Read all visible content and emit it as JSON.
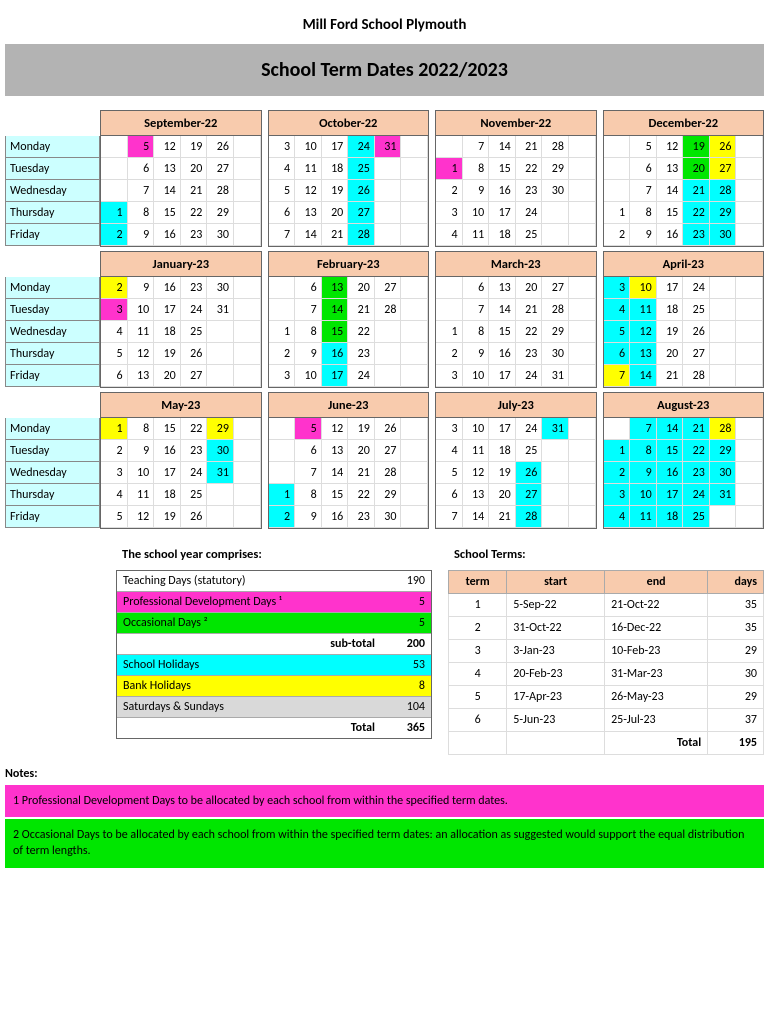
{
  "school_name": "Mill Ford School Plymouth",
  "banner": "School Term Dates 2022/2023",
  "day_names": [
    "Monday",
    "Tuesday",
    "Wednesday",
    "Thursday",
    "Friday"
  ],
  "colors": {
    "pink": "#ff33cc",
    "cyan": "#00ffff",
    "green": "#00e600",
    "yellow": "#ffff00",
    "header_peach": "#f8cbad",
    "day_label_bg": "#ccffff",
    "banner_grey": "#b3b3b3",
    "grey": "#d9d9d9"
  },
  "rows": [
    [
      {
        "name": "September-22",
        "cols": [
          [
            "",
            "5:pink",
            "12",
            "19",
            "26",
            ""
          ],
          [
            "",
            "6",
            "13",
            "20",
            "27",
            ""
          ],
          [
            "",
            "7",
            "14",
            "21",
            "28",
            ""
          ],
          [
            "1:cyan",
            "8",
            "15",
            "22",
            "29",
            ""
          ],
          [
            "2:cyan",
            "9",
            "16",
            "23",
            "30",
            ""
          ]
        ]
      },
      {
        "name": "October-22",
        "cols": [
          [
            "3",
            "10",
            "17",
            "24:cyan",
            "31:pink",
            ""
          ],
          [
            "4",
            "11",
            "18",
            "25:cyan",
            "",
            ""
          ],
          [
            "5",
            "12",
            "19",
            "26:cyan",
            "",
            ""
          ],
          [
            "6",
            "13",
            "20",
            "27:cyan",
            "",
            ""
          ],
          [
            "7",
            "14",
            "21",
            "28:cyan",
            "",
            ""
          ]
        ]
      },
      {
        "name": "November-22",
        "cols": [
          [
            "",
            "7",
            "14",
            "21",
            "28",
            ""
          ],
          [
            "1:pink",
            "8",
            "15",
            "22",
            "29",
            ""
          ],
          [
            "2",
            "9",
            "16",
            "23",
            "30",
            ""
          ],
          [
            "3",
            "10",
            "17",
            "24",
            "",
            ""
          ],
          [
            "4",
            "11",
            "18",
            "25",
            "",
            ""
          ]
        ]
      },
      {
        "name": "December-22",
        "cols": [
          [
            "",
            "5",
            "12",
            "19:green",
            "26:yellow",
            ""
          ],
          [
            "",
            "6",
            "13",
            "20:green",
            "27:yellow",
            ""
          ],
          [
            "",
            "7",
            "14",
            "21:cyan",
            "28:cyan",
            ""
          ],
          [
            "1",
            "8",
            "15",
            "22:cyan",
            "29:cyan",
            ""
          ],
          [
            "2",
            "9",
            "16",
            "23:cyan",
            "30:cyan",
            ""
          ]
        ]
      }
    ],
    [
      {
        "name": "January-23",
        "cols": [
          [
            "2:yellow",
            "9",
            "16",
            "23",
            "30",
            ""
          ],
          [
            "3:pink",
            "10",
            "17",
            "24",
            "31",
            ""
          ],
          [
            "4",
            "11",
            "18",
            "25",
            "",
            ""
          ],
          [
            "5",
            "12",
            "19",
            "26",
            "",
            ""
          ],
          [
            "6",
            "13",
            "20",
            "27",
            "",
            ""
          ]
        ]
      },
      {
        "name": "February-23",
        "cols": [
          [
            "",
            "6",
            "13:green",
            "20",
            "27",
            ""
          ],
          [
            "",
            "7",
            "14:green",
            "21",
            "28",
            ""
          ],
          [
            "1",
            "8",
            "15:green",
            "22",
            "",
            ""
          ],
          [
            "2",
            "9",
            "16:cyan",
            "23",
            "",
            ""
          ],
          [
            "3",
            "10",
            "17:cyan",
            "24",
            "",
            ""
          ]
        ]
      },
      {
        "name": "March-23",
        "cols": [
          [
            "",
            "6",
            "13",
            "20",
            "27",
            ""
          ],
          [
            "",
            "7",
            "14",
            "21",
            "28",
            ""
          ],
          [
            "1",
            "8",
            "15",
            "22",
            "29",
            ""
          ],
          [
            "2",
            "9",
            "16",
            "23",
            "30",
            ""
          ],
          [
            "3",
            "10",
            "17",
            "24",
            "31",
            ""
          ]
        ]
      },
      {
        "name": "April-23",
        "cols": [
          [
            "3:cyan",
            "10:yellow",
            "17",
            "24",
            "",
            ""
          ],
          [
            "4:cyan",
            "11:cyan",
            "18",
            "25",
            "",
            ""
          ],
          [
            "5:cyan",
            "12:cyan",
            "19",
            "26",
            "",
            ""
          ],
          [
            "6:cyan",
            "13:cyan",
            "20",
            "27",
            "",
            ""
          ],
          [
            "7:yellow",
            "14:cyan",
            "21",
            "28",
            "",
            ""
          ]
        ]
      }
    ],
    [
      {
        "name": "May-23",
        "cols": [
          [
            "1:yellow",
            "8",
            "15",
            "22",
            "29:yellow",
            ""
          ],
          [
            "2",
            "9",
            "16",
            "23",
            "30:cyan",
            ""
          ],
          [
            "3",
            "10",
            "17",
            "24",
            "31:cyan",
            ""
          ],
          [
            "4",
            "11",
            "18",
            "25",
            "",
            ""
          ],
          [
            "5",
            "12",
            "19",
            "26",
            "",
            ""
          ]
        ]
      },
      {
        "name": "June-23",
        "cols": [
          [
            "",
            "5:pink",
            "12",
            "19",
            "26",
            ""
          ],
          [
            "",
            "6",
            "13",
            "20",
            "27",
            ""
          ],
          [
            "",
            "7",
            "14",
            "21",
            "28",
            ""
          ],
          [
            "1:cyan",
            "8",
            "15",
            "22",
            "29",
            ""
          ],
          [
            "2:cyan",
            "9",
            "16",
            "23",
            "30",
            ""
          ]
        ]
      },
      {
        "name": "July-23",
        "cols": [
          [
            "3",
            "10",
            "17",
            "24",
            "31:cyan",
            ""
          ],
          [
            "4",
            "11",
            "18",
            "25",
            "",
            ""
          ],
          [
            "5",
            "12",
            "19",
            "26:cyan",
            "",
            ""
          ],
          [
            "6",
            "13",
            "20",
            "27:cyan",
            "",
            ""
          ],
          [
            "7",
            "14",
            "21",
            "28:cyan",
            "",
            ""
          ]
        ]
      },
      {
        "name": "August-23",
        "cols": [
          [
            "",
            "7:cyan",
            "14:cyan",
            "21:cyan",
            "28:yellow",
            ""
          ],
          [
            "1:cyan",
            "8:cyan",
            "15:cyan",
            "22:cyan",
            "29:cyan",
            ""
          ],
          [
            "2:cyan",
            "9:cyan",
            "16:cyan",
            "23:cyan",
            "30:cyan",
            ""
          ],
          [
            "3:cyan",
            "10:cyan",
            "17:cyan",
            "24:cyan",
            "31:cyan",
            ""
          ],
          [
            "4:cyan",
            "11:cyan",
            "18:cyan",
            "25:cyan",
            "",
            ""
          ]
        ]
      }
    ]
  ],
  "composition": {
    "heading": "The school year comprises:",
    "rows": [
      {
        "label": "Teaching Days (statutory)",
        "value": "190",
        "cls": "r-white"
      },
      {
        "label": "Professional Development Days ¹",
        "value": "5",
        "cls": "r-pink"
      },
      {
        "label": "Occasional Days ²",
        "value": "5",
        "cls": "r-green"
      },
      {
        "label": "sub-total",
        "value": "200",
        "cls": "r-white r-bold"
      },
      {
        "label": "School Holidays",
        "value": "53",
        "cls": "r-cyan"
      },
      {
        "label": "Bank Holidays",
        "value": "8",
        "cls": "r-yellow"
      },
      {
        "label": "Saturdays & Sundays",
        "value": "104",
        "cls": "r-grey"
      },
      {
        "label": "Total",
        "value": "365",
        "cls": "r-white r-bold"
      }
    ]
  },
  "terms": {
    "heading": "School Terms:",
    "headers": [
      "term",
      "start",
      "end",
      "days"
    ],
    "rows": [
      [
        "1",
        "5-Sep-22",
        "21-Oct-22",
        "35"
      ],
      [
        "2",
        "31-Oct-22",
        "16-Dec-22",
        "35"
      ],
      [
        "3",
        "3-Jan-23",
        "10-Feb-23",
        "29"
      ],
      [
        "4",
        "20-Feb-23",
        "31-Mar-23",
        "30"
      ],
      [
        "5",
        "17-Apr-23",
        "26-May-23",
        "29"
      ],
      [
        "6",
        "5-Jun-23",
        "25-Jul-23",
        "37"
      ]
    ],
    "total_label": "Total",
    "total_value": "195"
  },
  "notes": {
    "heading": "Notes:",
    "items": [
      {
        "text": "1  Professional Development Days to be allocated by each school from within the specified term dates.",
        "cls": "r-pink"
      },
      {
        "text": "2  Occasional Days to be allocated by each school from within the specified term dates: an allocation as suggested would support the equal distribution of term lengths.",
        "cls": "r-green"
      }
    ]
  }
}
